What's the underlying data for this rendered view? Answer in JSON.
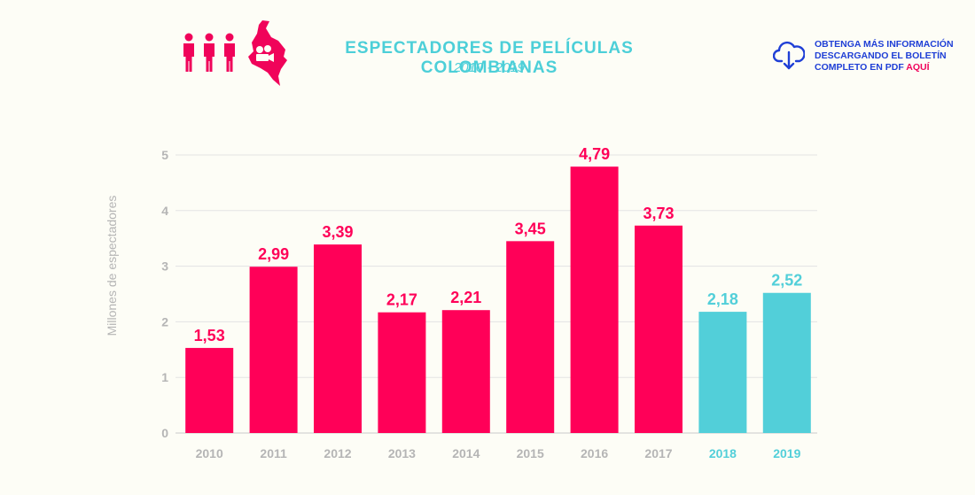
{
  "header": {
    "title": "ESPECTADORES DE PELÍCULAS COLOMBIANAS",
    "subtitle": "2010 - 2019"
  },
  "download": {
    "line1": "OBTENGA MÁS INFORMACIÓN",
    "line2": "DESCARGANDO EL BOLETÍN",
    "line3": "COMPLETO EN PDF ",
    "link": "AQUÍ",
    "icon": "cloud-download-icon"
  },
  "logo": {
    "icon": "people-map-icon"
  },
  "colors": {
    "primary": "#ff0058",
    "highlight": "#52cfd9",
    "title": "#4ccfd8",
    "link": "#1f3fd6",
    "axis_text": "#b5b5b5"
  },
  "chart_data": {
    "type": "bar",
    "categories": [
      "2010",
      "2011",
      "2012",
      "2013",
      "2014",
      "2015",
      "2016",
      "2017",
      "2018",
      "2019"
    ],
    "values": [
      1.53,
      2.99,
      3.39,
      2.17,
      2.21,
      3.45,
      4.79,
      3.73,
      2.18,
      2.52
    ],
    "data_labels": [
      "1,53",
      "2,99",
      "3,39",
      "2,17",
      "2,21",
      "3,45",
      "4,79",
      "3,73",
      "2,18",
      "2,52"
    ],
    "highlighted": [
      "2018",
      "2019"
    ],
    "ylabel": "Millones de espectadores",
    "xlabel": "",
    "ylim": [
      0,
      5
    ],
    "yticks": [
      0,
      1,
      2,
      3,
      4,
      5
    ],
    "grid": true,
    "legend": "none"
  }
}
